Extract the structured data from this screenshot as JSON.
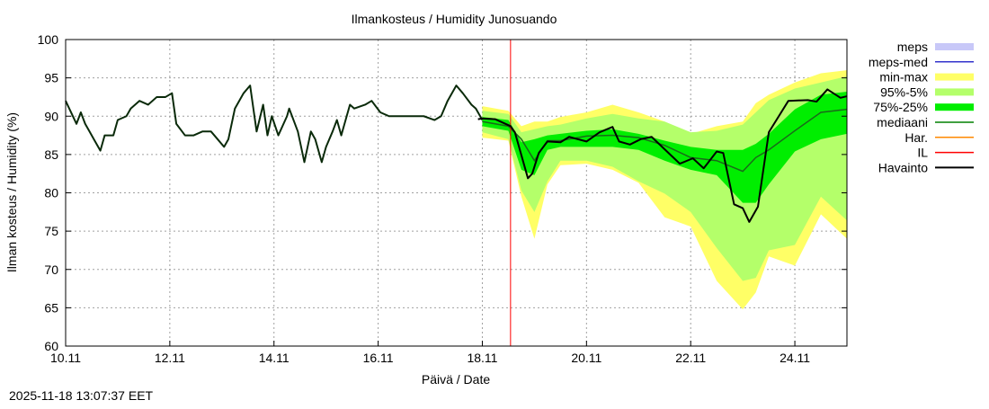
{
  "chart_data": {
    "type": "area",
    "title": "Ilmankosteus / Humidity  Junosuando",
    "xlabel": "Päivä / Date",
    "ylabel": "Ilman kosteus / Humidity (%)",
    "timestamp": "2025-11-18 13:07:37 EET",
    "xlim": [
      "2025-11-10 00:00",
      "2025-11-25 00:00"
    ],
    "ylim": [
      60,
      100
    ],
    "yticks": [
      60,
      65,
      70,
      75,
      80,
      85,
      90,
      95,
      100
    ],
    "xticks": [
      {
        "label": "10.11",
        "t": "2025-11-10 00:00"
      },
      {
        "label": "12.11",
        "t": "2025-11-12 00:00"
      },
      {
        "label": "14.11",
        "t": "2025-11-14 00:00"
      },
      {
        "label": "16.11",
        "t": "2025-11-16 00:00"
      },
      {
        "label": "18.11",
        "t": "2025-11-18 00:00"
      },
      {
        "label": "20.11",
        "t": "2025-11-20 00:00"
      },
      {
        "label": "22.11",
        "t": "2025-11-22 00:00"
      },
      {
        "label": "24.11",
        "t": "2025-11-24 00:00"
      }
    ],
    "grid": true,
    "legend_position": "right",
    "legend": [
      {
        "label": "meps",
        "kind": "box",
        "color": "#c8c8f8"
      },
      {
        "label": "meps-med",
        "kind": "line",
        "color": "#3333cc"
      },
      {
        "label": "min-max",
        "kind": "box",
        "color": "#ffff66"
      },
      {
        "label": "95%-5%",
        "kind": "box",
        "color": "#b4ff6a"
      },
      {
        "label": "75%-25%",
        "kind": "box",
        "color": "#00ee00"
      },
      {
        "label": "mediaani",
        "kind": "line",
        "color": "#008000"
      },
      {
        "label": "Har.",
        "kind": "line",
        "color": "#ff8800"
      },
      {
        "label": "IL",
        "kind": "line",
        "color": "#ff0000"
      },
      {
        "label": "Havainto",
        "kind": "line",
        "color": "#000000"
      }
    ],
    "il_time": "2025-11-18 13:00",
    "band_times": [
      "2025-11-18 00:00",
      "2025-11-18 12:00",
      "2025-11-18 18:00",
      "2025-11-19 00:00",
      "2025-11-19 06:00",
      "2025-11-19 12:00",
      "2025-11-20 00:00",
      "2025-11-20 12:00",
      "2025-11-21 00:00",
      "2025-11-21 12:00",
      "2025-11-22 00:00",
      "2025-11-22 12:00",
      "2025-11-23 00:00",
      "2025-11-23 06:00",
      "2025-11-23 12:00",
      "2025-11-24 00:00",
      "2025-11-24 12:00",
      "2025-11-25 00:00"
    ],
    "bands": {
      "min_max": {
        "upper": [
          91.3,
          90.7,
          88.7,
          89.3,
          89.3,
          89.9,
          90.5,
          91.5,
          90.5,
          89.3,
          87.7,
          88.7,
          89.3,
          91.7,
          92.8,
          94.4,
          95.6,
          96.0
        ],
        "lower": [
          87.2,
          86.8,
          79.5,
          74.0,
          81.1,
          83.6,
          83.8,
          83.0,
          81.3,
          76.8,
          75.6,
          68.5,
          64.8,
          67.0,
          71.7,
          70.5,
          77.2,
          74.0
        ]
      },
      "p95_p5": {
        "upper": [
          90.7,
          90.3,
          87.9,
          88.3,
          88.7,
          88.9,
          89.7,
          90.3,
          89.7,
          89.3,
          87.9,
          88.1,
          88.9,
          90.5,
          92.1,
          93.6,
          94.4,
          95.2
        ],
        "lower": [
          87.9,
          87.0,
          80.3,
          77.5,
          81.5,
          84.2,
          84.2,
          83.4,
          81.5,
          79.9,
          77.5,
          72.8,
          68.5,
          68.9,
          72.5,
          73.2,
          79.5,
          76.4
        ]
      },
      "p75_p25": {
        "upper": [
          89.9,
          89.5,
          86.6,
          87.0,
          87.5,
          87.7,
          88.1,
          88.3,
          87.7,
          86.8,
          86.0,
          85.6,
          85.6,
          86.4,
          87.7,
          90.9,
          92.8,
          93.2
        ],
        "lower": [
          88.7,
          88.1,
          83.0,
          82.3,
          85.6,
          86.0,
          86.0,
          86.0,
          85.6,
          84.2,
          83.0,
          82.3,
          78.7,
          78.7,
          81.1,
          85.4,
          87.0,
          87.7
        ]
      },
      "median": [
        89.3,
        88.7,
        87.0,
        84.2,
        86.8,
        86.8,
        87.4,
        87.5,
        87.2,
        86.2,
        84.6,
        84.2,
        82.8,
        84.6,
        85.6,
        88.1,
        90.5,
        90.9
      ]
    },
    "series": [
      {
        "name": "Havainto",
        "color": "#0a2a0a",
        "points": [
          [
            "2025-11-10 00:00",
            92.0
          ],
          [
            "2025-11-10 05:00",
            89.0
          ],
          [
            "2025-11-10 07:00",
            90.5
          ],
          [
            "2025-11-10 09:00",
            89.0
          ],
          [
            "2025-11-10 11:00",
            88.0
          ],
          [
            "2025-11-10 13:00",
            87.0
          ],
          [
            "2025-11-10 16:00",
            85.5
          ],
          [
            "2025-11-10 18:00",
            87.5
          ],
          [
            "2025-11-10 22:00",
            87.5
          ],
          [
            "2025-11-11 00:00",
            89.5
          ],
          [
            "2025-11-11 04:00",
            90.0
          ],
          [
            "2025-11-11 06:00",
            91.0
          ],
          [
            "2025-11-11 10:00",
            92.0
          ],
          [
            "2025-11-11 14:00",
            91.5
          ],
          [
            "2025-11-11 18:00",
            92.5
          ],
          [
            "2025-11-11 22:00",
            92.5
          ],
          [
            "2025-11-12 01:00",
            93.0
          ],
          [
            "2025-11-12 03:00",
            89.0
          ],
          [
            "2025-11-12 07:00",
            87.5
          ],
          [
            "2025-11-12 11:00",
            87.5
          ],
          [
            "2025-11-12 15:00",
            88.0
          ],
          [
            "2025-11-12 19:00",
            88.0
          ],
          [
            "2025-11-12 22:00",
            87.0
          ],
          [
            "2025-11-13 01:00",
            86.0
          ],
          [
            "2025-11-13 03:00",
            87.0
          ],
          [
            "2025-11-13 06:00",
            91.0
          ],
          [
            "2025-11-13 10:00",
            93.0
          ],
          [
            "2025-11-13 13:00",
            94.0
          ],
          [
            "2025-11-13 16:00",
            88.0
          ],
          [
            "2025-11-13 19:00",
            91.5
          ],
          [
            "2025-11-13 21:00",
            87.5
          ],
          [
            "2025-11-13 23:00",
            90.0
          ],
          [
            "2025-11-14 02:00",
            87.5
          ],
          [
            "2025-11-14 06:00",
            90.0
          ],
          [
            "2025-11-14 07:00",
            91.0
          ],
          [
            "2025-11-14 11:00",
            88.0
          ],
          [
            "2025-11-14 14:00",
            84.0
          ],
          [
            "2025-11-14 17:00",
            88.0
          ],
          [
            "2025-11-14 19:00",
            87.0
          ],
          [
            "2025-11-14 22:00",
            84.0
          ],
          [
            "2025-11-15 00:00",
            86.0
          ],
          [
            "2025-11-15 03:00",
            88.0
          ],
          [
            "2025-11-15 05:00",
            89.5
          ],
          [
            "2025-11-15 07:00",
            87.5
          ],
          [
            "2025-11-15 11:00",
            91.5
          ],
          [
            "2025-11-15 13:00",
            91.0
          ],
          [
            "2025-11-15 18:00",
            91.5
          ],
          [
            "2025-11-15 21:00",
            92.0
          ],
          [
            "2025-11-16 01:00",
            90.5
          ],
          [
            "2025-11-16 05:00",
            90.0
          ],
          [
            "2025-11-16 10:00",
            90.0
          ],
          [
            "2025-11-16 16:00",
            90.0
          ],
          [
            "2025-11-16 21:00",
            90.0
          ],
          [
            "2025-11-17 02:00",
            89.5
          ],
          [
            "2025-11-17 05:00",
            90.0
          ],
          [
            "2025-11-17 08:00",
            92.0
          ],
          [
            "2025-11-17 12:00",
            94.0
          ],
          [
            "2025-11-17 15:00",
            93.0
          ],
          [
            "2025-11-17 19:00",
            91.5
          ],
          [
            "2025-11-17 21:00",
            91.0
          ],
          [
            "2025-11-18 00:00",
            89.5
          ]
        ]
      },
      {
        "color": "#000000",
        "points": [
          [
            "2025-11-17 22:00",
            89.6
          ],
          [
            "2025-11-18 00:00",
            89.7
          ],
          [
            "2025-11-18 06:00",
            89.6
          ],
          [
            "2025-11-18 13:00",
            88.7
          ],
          [
            "2025-11-18 15:00",
            87.9
          ],
          [
            "2025-11-18 21:00",
            81.9
          ],
          [
            "2025-11-18 23:00",
            82.5
          ],
          [
            "2025-11-19 02:00",
            85.2
          ],
          [
            "2025-11-19 06:00",
            86.7
          ],
          [
            "2025-11-19 12:00",
            86.6
          ],
          [
            "2025-11-19 16:00",
            87.3
          ],
          [
            "2025-11-20 00:00",
            86.7
          ],
          [
            "2025-11-20 06:00",
            87.9
          ],
          [
            "2025-11-20 12:00",
            88.6
          ],
          [
            "2025-11-20 15:00",
            86.7
          ],
          [
            "2025-11-20 20:00",
            86.3
          ],
          [
            "2025-11-21 01:00",
            87.0
          ],
          [
            "2025-11-21 06:00",
            87.3
          ],
          [
            "2025-11-21 16:00",
            84.6
          ],
          [
            "2025-11-21 19:00",
            83.8
          ],
          [
            "2025-11-22 01:00",
            84.5
          ],
          [
            "2025-11-22 06:00",
            83.2
          ],
          [
            "2025-11-22 12:00",
            85.4
          ],
          [
            "2025-11-22 15:00",
            85.2
          ],
          [
            "2025-11-22 20:00",
            78.5
          ],
          [
            "2025-11-23 00:00",
            78.0
          ],
          [
            "2025-11-23 03:00",
            76.2
          ],
          [
            "2025-11-23 07:00",
            78.2
          ],
          [
            "2025-11-23 12:00",
            87.9
          ],
          [
            "2025-11-23 21:00",
            92.0
          ],
          [
            "2025-11-24 06:00",
            92.1
          ],
          [
            "2025-11-24 10:00",
            91.9
          ],
          [
            "2025-11-24 15:00",
            93.5
          ],
          [
            "2025-11-24 21:00",
            92.4
          ],
          [
            "2025-11-25 00:00",
            92.6
          ]
        ]
      }
    ]
  }
}
